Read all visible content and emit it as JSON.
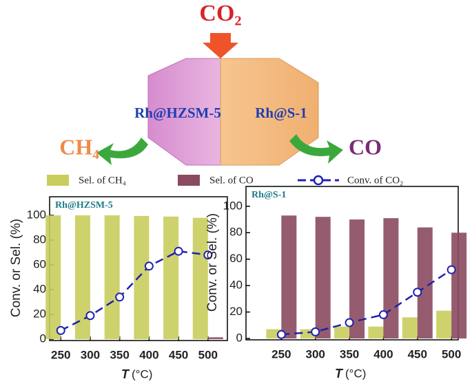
{
  "diagram": {
    "reactant": "CO₂",
    "left_catalyst": "Rh@HZSM-5",
    "right_catalyst": "Rh@S-1",
    "left_product": "CH₄",
    "right_product": "CO"
  },
  "chart_data": [
    {
      "type": "bar",
      "panel_label": "Rh@HZSM-5",
      "y_label": "Conv. or Sel. (%)",
      "x_label_var": "T",
      "x_label_unit": "(°C)",
      "x": [
        250,
        300,
        350,
        400,
        450,
        500
      ],
      "xlim": [
        231,
        533
      ],
      "xticks": [
        250,
        300,
        350,
        400,
        450,
        500
      ],
      "ylim": [
        0,
        115
      ],
      "yticks": [
        0,
        20,
        40,
        60,
        80,
        100
      ],
      "series": [
        {
          "name": "Sel. of CH₄",
          "color": "#c9cd5c",
          "values": [
            100,
            100,
            100,
            99.5,
            99,
            98
          ]
        },
        {
          "name": "Sel. of CO",
          "color": "#8a4a5f",
          "values": [
            0,
            0,
            0,
            0,
            0,
            1.5
          ]
        },
        {
          "name": "Conv. of CO₂",
          "type": "line",
          "color": "#2020b0",
          "values": [
            7,
            19,
            34,
            59,
            71,
            68
          ]
        }
      ]
    },
    {
      "type": "bar",
      "panel_label": "Rh@S-1",
      "y_label": "Conv. or Sel. (%)",
      "x_label_var": "T",
      "x_label_unit": "(°C)",
      "x": [
        250,
        300,
        350,
        400,
        450,
        500
      ],
      "xlim": [
        198,
        510
      ],
      "xticks": [
        250,
        300,
        350,
        400,
        450,
        500
      ],
      "ylim": [
        0,
        115
      ],
      "yticks": [
        0,
        20,
        40,
        60,
        80,
        100
      ],
      "series": [
        {
          "color": "#c9cd5c",
          "values": [
            7,
            7,
            9,
            9,
            16,
            21
          ]
        },
        {
          "color": "#8a4a5f",
          "values": [
            93,
            92,
            90,
            91,
            84,
            80
          ]
        },
        {
          "type": "line",
          "color": "#2020b0",
          "values": [
            3,
            5,
            12,
            18,
            35,
            52
          ]
        }
      ]
    }
  ]
}
